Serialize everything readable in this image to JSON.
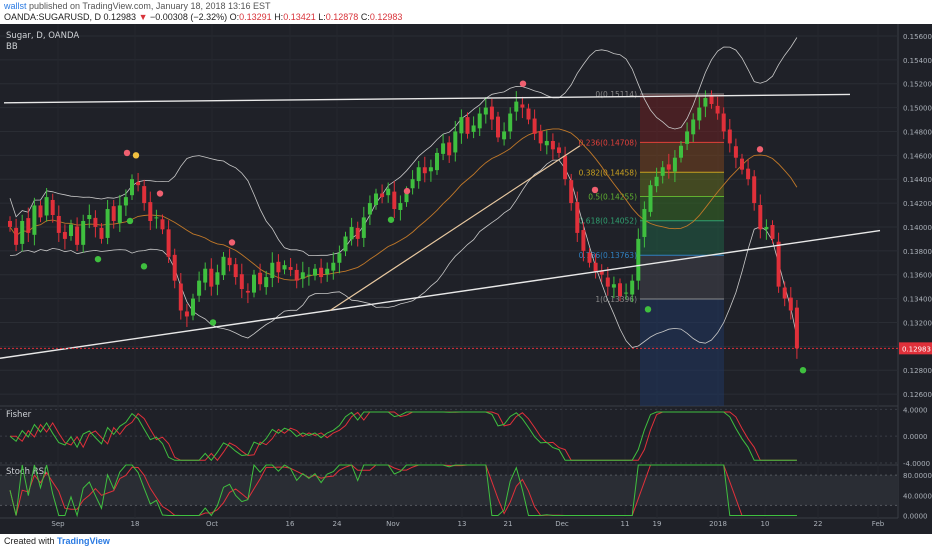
{
  "header": {
    "author": "wallst",
    "published_text": " published on TradingView.com, January 18, 2018 13:16 EST",
    "symbol": "OANDA:SUGARUSD, D",
    "last": "0.12983",
    "change_arrow": "▼",
    "change": "−0.00308 (−2.32%)",
    "open_label": "O:",
    "open": "0.13291",
    "high_label": "H:",
    "high": "0.13421",
    "low_label": "L:",
    "low": "0.12878",
    "close_label": "C:",
    "close": "0.12983"
  },
  "footer": {
    "created_with": "Created with",
    "brand": "TradingView"
  },
  "colors": {
    "bull": "#3fbf3f",
    "bear": "#e0303a",
    "background": "#1f2128",
    "price_tag": "#e0303a"
  },
  "chart_data": [
    {
      "type": "candlestick",
      "title": "Sugar, D, OANDA",
      "indicator_label": "BB",
      "ylim": [
        0.125,
        0.157
      ],
      "y_ticks": [
        "0.15600",
        "0.15400",
        "0.15200",
        "0.15000",
        "0.14800",
        "0.14600",
        "0.14400",
        "0.14200",
        "0.14000",
        "0.13800",
        "0.13600",
        "0.13400",
        "0.13200",
        "0.13000",
        "0.12800",
        "0.12600"
      ],
      "x_ticks": [
        "Sep",
        "18",
        "Oct",
        "16",
        "24",
        "Nov",
        "13",
        "21",
        "Dec",
        "11",
        "19",
        "2018",
        "10",
        "22",
        "Feb"
      ],
      "last_price_label": "0.12983",
      "fibonacci_levels": [
        {
          "label": "0(0.15114)",
          "value": 0.15114
        },
        {
          "label": "0.236(0.14708)",
          "value": 0.14708
        },
        {
          "label": "0.382(0.14458)",
          "value": 0.14458
        },
        {
          "label": "0.5(0.14255)",
          "value": 0.14255
        },
        {
          "label": "0.618(0.14052)",
          "value": 0.14052
        },
        {
          "label": "0.786(0.13763)",
          "value": 0.13763
        },
        {
          "label": "1(0.13396)",
          "value": 0.13396
        }
      ],
      "closes": [
        0.14,
        0.1385,
        0.1405,
        0.1395,
        0.1418,
        0.1408,
        0.1425,
        0.141,
        0.1395,
        0.139,
        0.1402,
        0.1385,
        0.1405,
        0.141,
        0.14,
        0.139,
        0.1415,
        0.1405,
        0.1418,
        0.1425,
        0.144,
        0.1435,
        0.142,
        0.1405,
        0.1408,
        0.1398,
        0.1375,
        0.1355,
        0.133,
        0.1325,
        0.134,
        0.1355,
        0.1365,
        0.135,
        0.1362,
        0.1375,
        0.1368,
        0.1358,
        0.1348,
        0.1345,
        0.136,
        0.1352,
        0.1358,
        0.137,
        0.1362,
        0.1368,
        0.1364,
        0.1355,
        0.1362,
        0.136,
        0.1365,
        0.1358,
        0.1365,
        0.137,
        0.1378,
        0.1392,
        0.14,
        0.139,
        0.1408,
        0.142,
        0.1428,
        0.1425,
        0.1432,
        0.1415,
        0.142,
        0.143,
        0.144,
        0.145,
        0.1445,
        0.145,
        0.1462,
        0.147,
        0.146,
        0.148,
        0.1492,
        0.1478,
        0.1485,
        0.1495,
        0.15,
        0.149,
        0.1475,
        0.148,
        0.1495,
        0.1505,
        0.15,
        0.149,
        0.1478,
        0.147,
        0.1472,
        0.1465,
        0.1462,
        0.144,
        0.142,
        0.1395,
        0.138,
        0.137,
        0.1362,
        0.136,
        0.135,
        0.1352,
        0.1342,
        0.1345,
        0.1355,
        0.139,
        0.1415,
        0.1435,
        0.1442,
        0.145,
        0.1448,
        0.1458,
        0.1468,
        0.148,
        0.149,
        0.15,
        0.1508,
        0.1503,
        0.1495,
        0.148,
        0.147,
        0.1458,
        0.1448,
        0.144,
        0.142,
        0.1398,
        0.14,
        0.139,
        0.135,
        0.134,
        0.133,
        0.12983
      ],
      "support_line": {
        "from": {
          "date": "Aug 15",
          "price": 0.129
        },
        "to": {
          "date": "Jan 30",
          "price": 0.1397
        }
      },
      "resistance_line": {
        "from": {
          "date": "Aug 15",
          "price": 0.1504
        },
        "to": {
          "date": "Jan 20",
          "price": 0.1511
        }
      }
    },
    {
      "type": "line",
      "title": "Fisher",
      "y_ticks": [
        "4.0000",
        "0.0000",
        "-4.0000"
      ],
      "ylim": [
        -4.3,
        4.5
      ]
    },
    {
      "type": "line",
      "title": "Stoch RSI",
      "y_ticks": [
        "80.0000",
        "40.0000",
        "0.0000"
      ],
      "ylim": [
        -5,
        100
      ]
    }
  ]
}
